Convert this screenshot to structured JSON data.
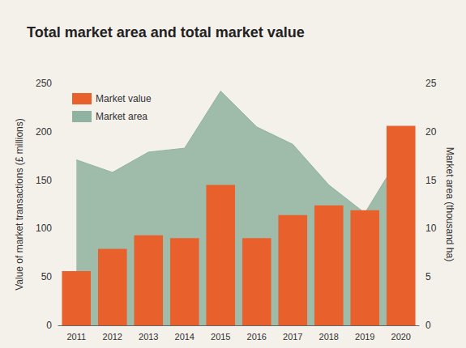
{
  "chart_data": {
    "type": "bar",
    "title": "Total market area and total market value",
    "categories": [
      "2011",
      "2012",
      "2013",
      "2014",
      "2015",
      "2016",
      "2017",
      "2018",
      "2019",
      "2020"
    ],
    "series": [
      {
        "name": "Market value",
        "type": "bar",
        "color": "#e8602c",
        "values": [
          56,
          79,
          93,
          90,
          145,
          90,
          114,
          124,
          119,
          206
        ]
      },
      {
        "name": "Market area",
        "type": "line",
        "axis": "y2",
        "color": "#8fb3a0",
        "values": [
          17.1,
          15.8,
          17.9,
          18.3,
          24.2,
          20.5,
          18.7,
          14.5,
          11.6,
          17.7
        ]
      }
    ],
    "y_label": "Value of market transactions (£ millions)",
    "y2_label": "Market area (thousand ha)",
    "ylim": [
      0,
      250
    ],
    "yticks": [
      0,
      50,
      100,
      150,
      200,
      250
    ],
    "y2lim": [
      0,
      25
    ],
    "y2ticks": [
      0,
      5,
      10,
      15,
      20,
      25
    ],
    "grid": false,
    "legend": "upper left"
  }
}
